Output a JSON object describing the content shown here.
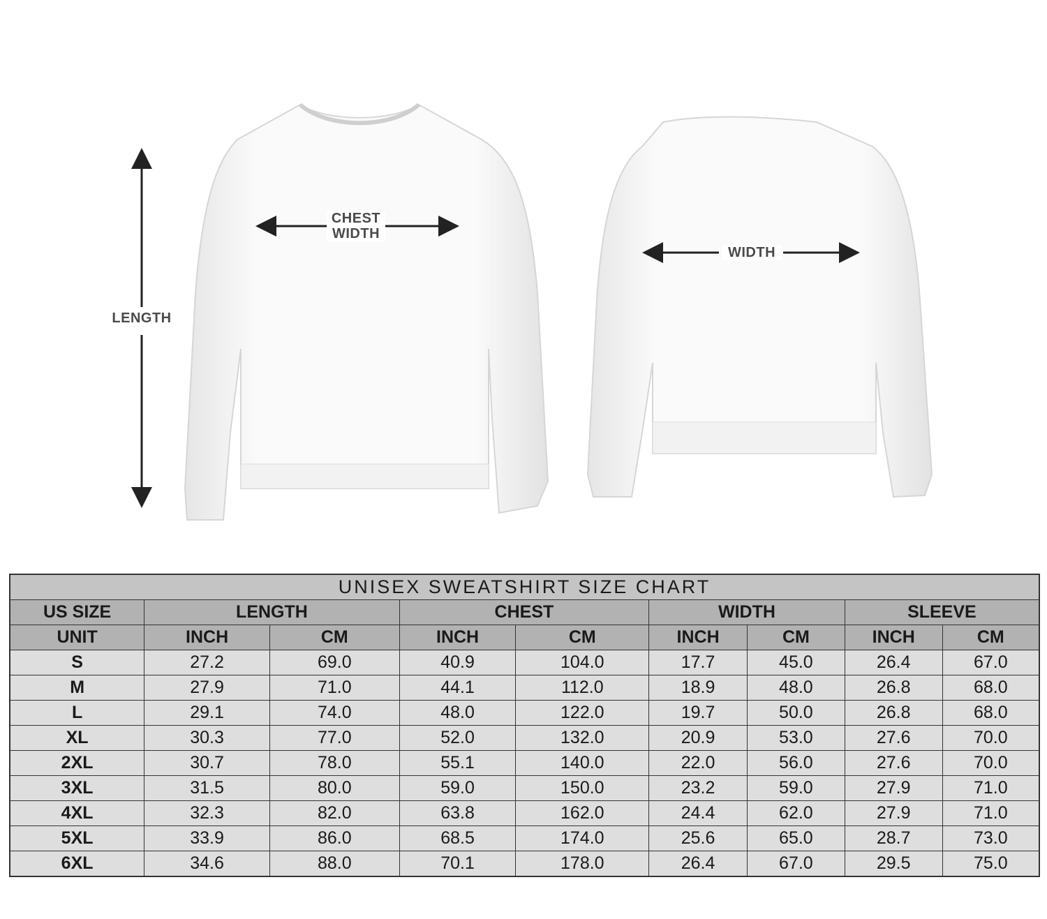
{
  "illustration": {
    "length_label": "LENGTH",
    "chest_label_line1": "CHEST",
    "chest_label_line2": "WIDTH",
    "width_label": "WIDTH",
    "arrow_color": "#222222"
  },
  "table": {
    "title": "UNISEX SWEATSHIRT SIZE CHART",
    "size_header": "US SIZE",
    "unit_header": "UNIT",
    "groups": [
      "LENGTH",
      "CHEST",
      "WIDTH",
      "SLEEVE"
    ],
    "units": [
      "INCH",
      "CM",
      "INCH",
      "CM",
      "INCH",
      "CM",
      "INCH",
      "CM"
    ],
    "rows": [
      {
        "size": "S",
        "values": [
          "27.2",
          "69.0",
          "40.9",
          "104.0",
          "17.7",
          "45.0",
          "26.4",
          "67.0"
        ]
      },
      {
        "size": "M",
        "values": [
          "27.9",
          "71.0",
          "44.1",
          "112.0",
          "18.9",
          "48.0",
          "26.8",
          "68.0"
        ]
      },
      {
        "size": "L",
        "values": [
          "29.1",
          "74.0",
          "48.0",
          "122.0",
          "19.7",
          "50.0",
          "26.8",
          "68.0"
        ]
      },
      {
        "size": "XL",
        "values": [
          "30.3",
          "77.0",
          "52.0",
          "132.0",
          "20.9",
          "53.0",
          "27.6",
          "70.0"
        ]
      },
      {
        "size": "2XL",
        "values": [
          "30.7",
          "78.0",
          "55.1",
          "140.0",
          "22.0",
          "56.0",
          "27.6",
          "70.0"
        ]
      },
      {
        "size": "3XL",
        "values": [
          "31.5",
          "80.0",
          "59.0",
          "150.0",
          "23.2",
          "59.0",
          "27.9",
          "71.0"
        ]
      },
      {
        "size": "4XL",
        "values": [
          "32.3",
          "82.0",
          "63.8",
          "162.0",
          "24.4",
          "62.0",
          "27.9",
          "71.0"
        ]
      },
      {
        "size": "5XL",
        "values": [
          "33.9",
          "86.0",
          "68.5",
          "174.0",
          "25.6",
          "65.0",
          "28.7",
          "73.0"
        ]
      },
      {
        "size": "6XL",
        "values": [
          "34.6",
          "88.0",
          "70.1",
          "178.0",
          "26.4",
          "67.0",
          "29.5",
          "75.0"
        ]
      }
    ],
    "colors": {
      "title_bg": "#c4c4c4",
      "header_bg": "#b2b2b2",
      "row_bg": "#dedede",
      "border": "#333333"
    }
  }
}
